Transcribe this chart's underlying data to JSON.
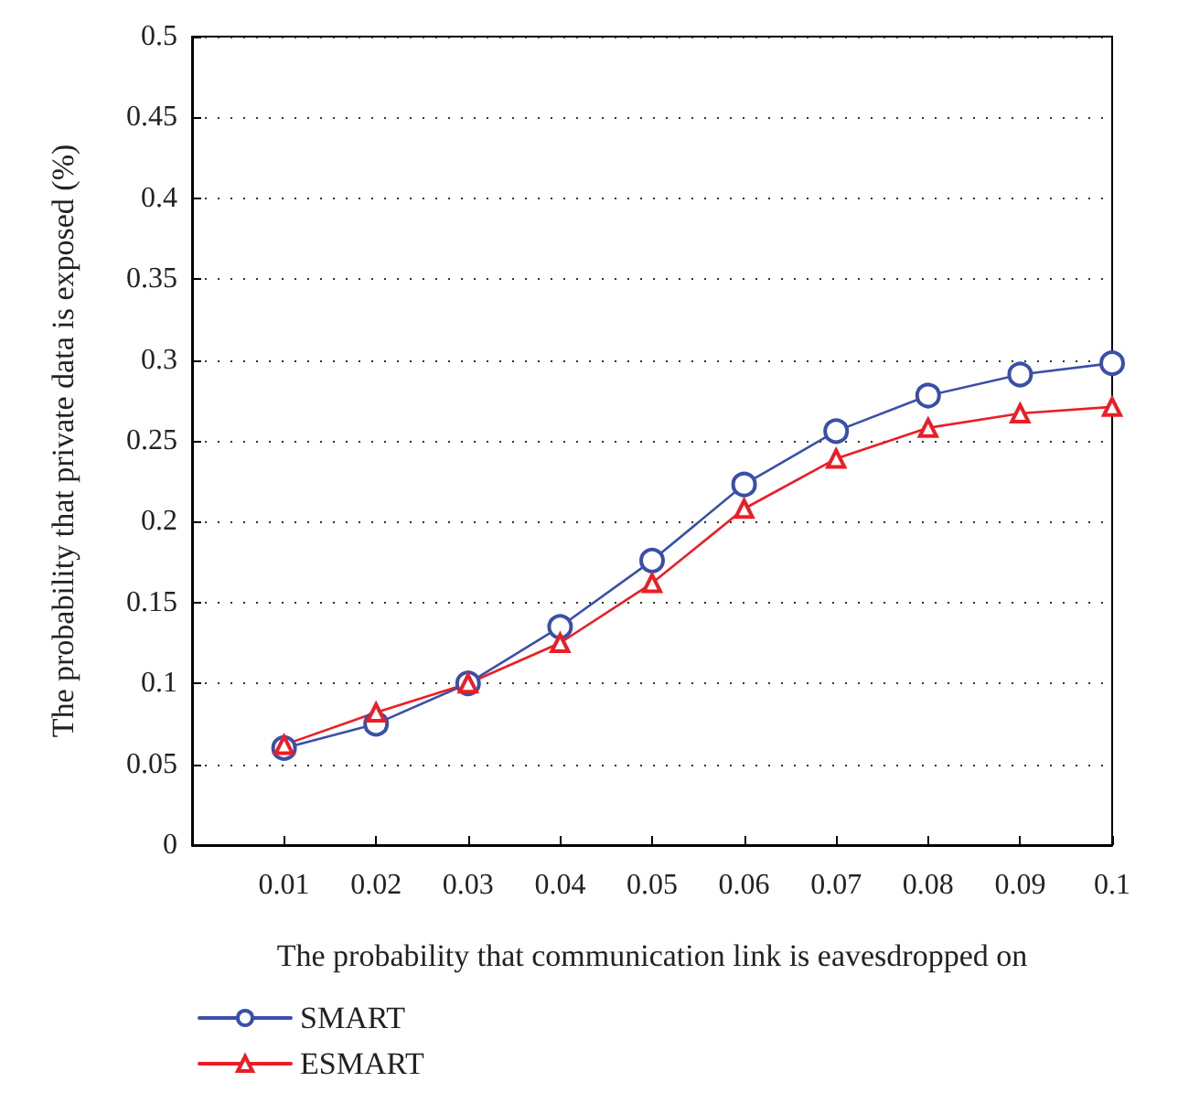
{
  "chart_data": {
    "type": "line",
    "xlabel": "The probability that communication link is eavesdropped on",
    "ylabel": "The probability that private data is exposed (%)",
    "x": [
      0.01,
      0.02,
      0.03,
      0.04,
      0.05,
      0.06,
      0.07,
      0.08,
      0.09,
      0.1
    ],
    "series": [
      {
        "name": "SMART",
        "color": "#3a50a8",
        "marker": "circle",
        "values": [
          0.06,
          0.075,
          0.1,
          0.135,
          0.176,
          0.223,
          0.256,
          0.278,
          0.291,
          0.298
        ]
      },
      {
        "name": "ESMART",
        "color": "#ee1c25",
        "marker": "triangle",
        "values": [
          0.062,
          0.082,
          0.1,
          0.125,
          0.162,
          0.208,
          0.239,
          0.258,
          0.267,
          0.271
        ]
      }
    ],
    "xlim": [
      0,
      0.1
    ],
    "xticks": [
      0.01,
      0.02,
      0.03,
      0.04,
      0.05,
      0.06,
      0.07,
      0.08,
      0.09,
      0.1
    ],
    "ylim": [
      0,
      0.5
    ],
    "yticks": [
      0,
      0.05,
      0.1,
      0.15,
      0.2,
      0.25,
      0.3,
      0.35,
      0.4,
      0.45,
      0.5
    ],
    "grid": "y",
    "legend": "bottom left",
    "line_style": "solid"
  }
}
